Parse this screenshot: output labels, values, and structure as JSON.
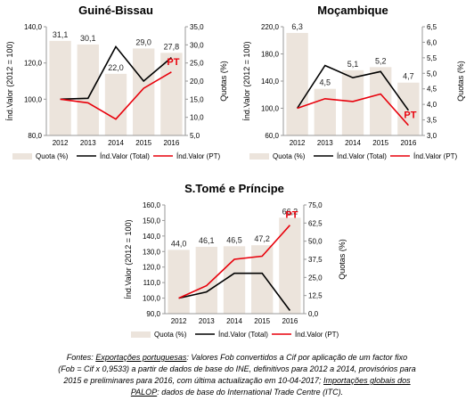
{
  "colors": {
    "bar": "#ece4dc",
    "total_line": "#000000",
    "pt_line": "#e8000b",
    "pt_label": "#e8000b"
  },
  "legend": {
    "quota": "Quota (%)",
    "total": "Índ.Valor (Total)",
    "pt": "Índ.Valor (PT)"
  },
  "chart_data": [
    {
      "type": "bar+line",
      "title": "Guiné-Bissau",
      "categories": [
        "2012",
        "2013",
        "2014",
        "2015",
        "2016"
      ],
      "ylabel": "Índ.Valor (2012 = 100)",
      "y2label": "Quotas (%)",
      "ylim": [
        80,
        140
      ],
      "yticks": [
        "80,0",
        "100,0",
        "120,0",
        "140,0"
      ],
      "y2lim": [
        5,
        35
      ],
      "y2ticks": [
        "5,0",
        "10,0",
        "15,0",
        "20,0",
        "25,0",
        "30,0",
        "35,0"
      ],
      "quota": [
        31.1,
        30.1,
        22.0,
        29.0,
        27.8
      ],
      "quota_labels": [
        "31,1",
        "30,1",
        "22,0",
        "29,0",
        "27,8"
      ],
      "total": [
        100,
        100.5,
        129,
        110,
        123
      ],
      "pt": [
        100,
        98,
        89,
        106,
        115
      ],
      "pt_tag": "PT",
      "legend_position": "bottom",
      "grid": false
    },
    {
      "type": "bar+line",
      "title": "Moçambique",
      "categories": [
        "2012",
        "2013",
        "2014",
        "2015",
        "2016"
      ],
      "ylabel": "Índ.Valor (2012 = 100)",
      "y2label": "Quotas (%)",
      "ylim": [
        60,
        220
      ],
      "yticks": [
        "60,0",
        "100,0",
        "140,0",
        "180,0",
        "220,0"
      ],
      "y2lim": [
        3.0,
        6.5
      ],
      "y2ticks": [
        "3,0",
        "3,5",
        "4,0",
        "4,5",
        "5,0",
        "5,5",
        "6,0",
        "6,5"
      ],
      "quota": [
        6.3,
        4.5,
        5.1,
        5.2,
        4.7
      ],
      "quota_labels": [
        "6,3",
        "4,5",
        "5,1",
        "5,2",
        "4,7"
      ],
      "total": [
        100,
        163,
        145,
        154,
        97
      ],
      "pt": [
        100,
        114,
        110,
        121,
        75
      ],
      "pt_tag": "PT",
      "legend_position": "bottom",
      "grid": false
    },
    {
      "type": "bar+line",
      "title": "S.Tomé e Príncipe",
      "categories": [
        "2012",
        "2013",
        "2014",
        "2015",
        "2016"
      ],
      "ylabel": "Índ.Valor (2012 = 100)",
      "y2label": "Quotas (%)",
      "ylim": [
        90,
        160
      ],
      "yticks": [
        "90,0",
        "100,0",
        "110,0",
        "120,0",
        "130,0",
        "140,0",
        "150,0",
        "160,0"
      ],
      "y2lim": [
        0,
        75
      ],
      "y2ticks": [
        "0,0",
        "12,5",
        "25,0",
        "37,5",
        "50,0",
        "62,5",
        "75,0"
      ],
      "quota": [
        44.0,
        46.1,
        46.5,
        47.2,
        66.2
      ],
      "quota_labels": [
        "44,0",
        "46,1",
        "46,5",
        "47,2",
        "66,2"
      ],
      "total": [
        100,
        104,
        116,
        116,
        92
      ],
      "pt": [
        100,
        108,
        125,
        127,
        147
      ],
      "pt_tag": "PT",
      "legend_position": "bottom",
      "grid": false
    }
  ],
  "source": {
    "l1_pre": "Fontes: ",
    "l1_link": "Exportações portuguesas",
    "l1_post": ": Valores Fob convertidos a Cif por aplicação de um factor fixo",
    "l2": "(Fob = Cif x 0,9533) a partir de dados de base do INE, definitivos para 2012 a 2014, provisórios para",
    "l3_pre": "2015 e preliminares para 2016, com última actualização em 10-04-2017; ",
    "l3_link": "Importações globais dos",
    "l4_link": "PALOP",
    "l4_post": ": dados de base do International Trade Centre (ITC)."
  }
}
